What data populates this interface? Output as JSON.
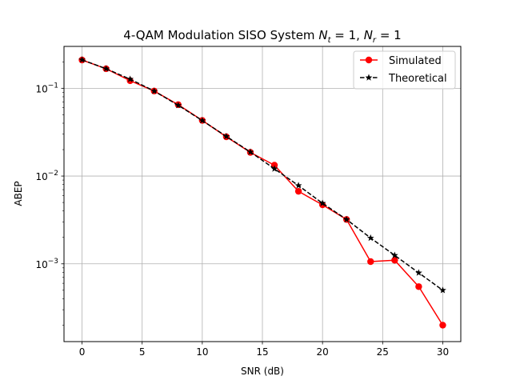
{
  "chart_data": {
    "type": "line",
    "title": "4-QAM Modulation SISO System",
    "title_math": [
      "N",
      "t",
      " = 1, ",
      "N",
      "r",
      " = 1"
    ],
    "xlabel": "SNR (dB)",
    "ylabel": "ABEP",
    "x_scale": "linear",
    "y_scale": "log",
    "xlim": [
      -1.5,
      31.5
    ],
    "ylim": [
      0.00013,
      0.3
    ],
    "x_ticks": [
      0,
      5,
      10,
      15,
      20,
      25,
      30
    ],
    "y_ticks": [
      {
        "value": 0.001,
        "base": "10",
        "exp": "−3"
      },
      {
        "value": 0.01,
        "base": "10",
        "exp": "−2"
      },
      {
        "value": 0.1,
        "base": "10",
        "exp": "−1"
      }
    ],
    "grid": true,
    "legend_position": "top-right",
    "x": [
      0,
      2,
      4,
      6,
      8,
      10,
      12,
      14,
      16,
      18,
      20,
      22,
      24,
      26,
      28,
      30
    ],
    "series": [
      {
        "name": "Simulated",
        "color": "#ff0000",
        "line_style": "solid",
        "marker": "circle",
        "values": [
          0.21,
          0.167,
          0.122,
          0.093,
          0.065,
          0.043,
          0.028,
          0.0186,
          0.0133,
          0.0067,
          0.0047,
          0.0032,
          0.00106,
          0.0011,
          0.00055,
          0.0002
        ]
      },
      {
        "name": "Theoretical",
        "color": "#000000",
        "line_style": "dashed",
        "marker": "star",
        "values": [
          0.211,
          0.167,
          0.127,
          0.093,
          0.064,
          0.0429,
          0.0283,
          0.0188,
          0.0121,
          0.0078,
          0.0049,
          0.0032,
          0.00197,
          0.00125,
          0.00079,
          0.0005
        ]
      }
    ]
  }
}
